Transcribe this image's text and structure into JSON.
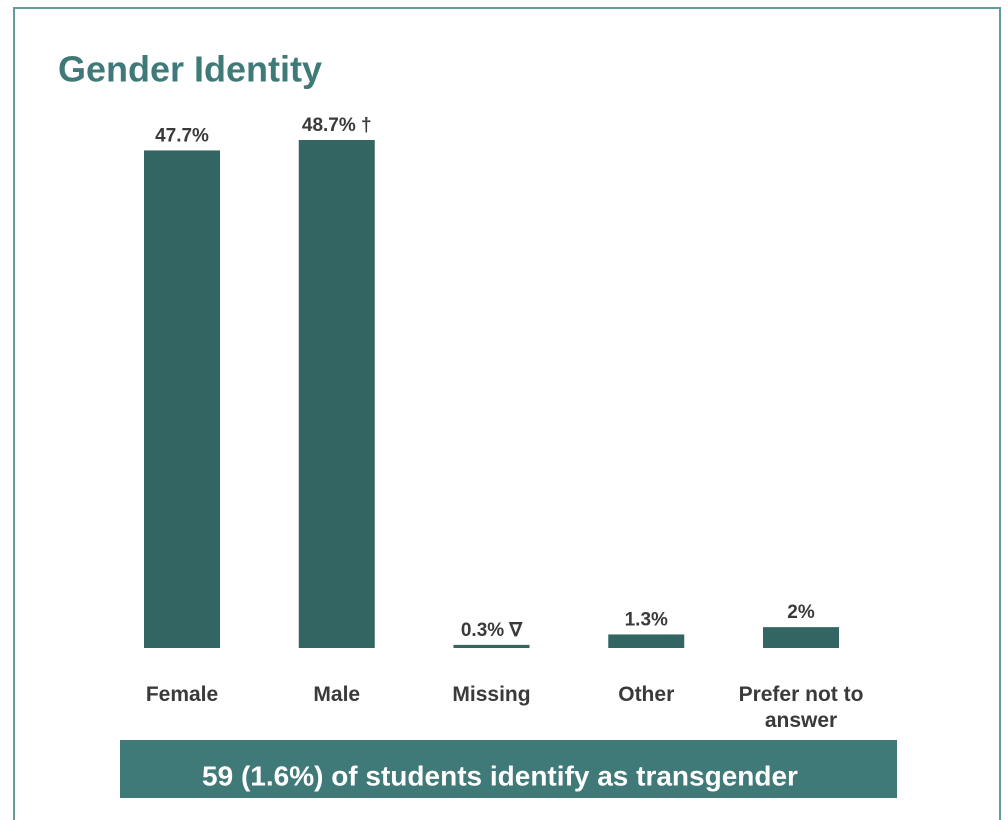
{
  "chart_data": {
    "type": "bar",
    "title": "Gender Identity",
    "categories": [
      "Female",
      "Male",
      "Missing",
      "Other",
      "Prefer not to answer"
    ],
    "values": [
      47.7,
      48.7,
      0.3,
      1.3,
      2
    ],
    "value_labels": [
      "47.7%",
      "48.7% †",
      "0.3% ∇",
      "1.3%",
      "2%"
    ],
    "color": "#336663",
    "footnote": "59 (1.6%) of students identify as transgender"
  }
}
